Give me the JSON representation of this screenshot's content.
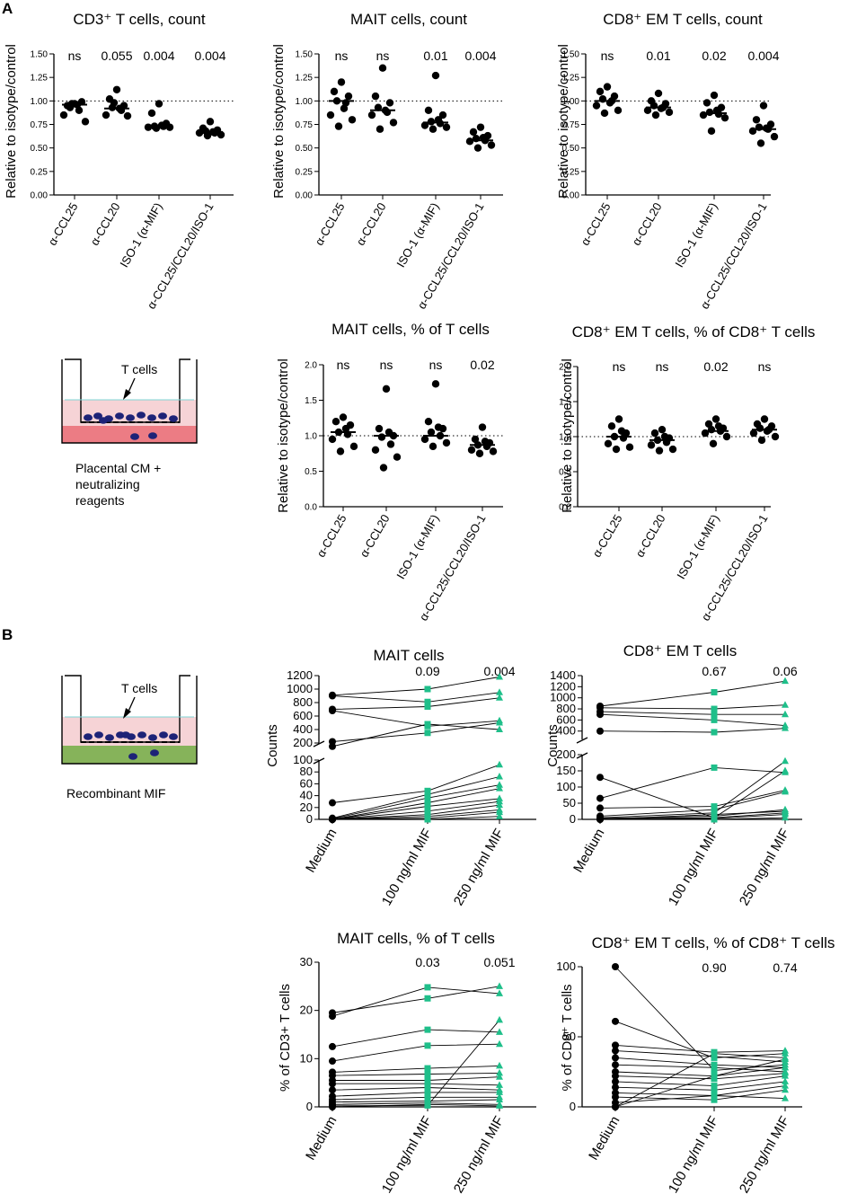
{
  "panel_labels": {
    "a": "A",
    "b": "B"
  },
  "diagram_a": {
    "label": "T cells",
    "caption": [
      "Placental CM  +",
      "neutralizing",
      "reagents"
    ]
  },
  "diagram_b": {
    "label": "T cells",
    "caption": "Recombinant MIF"
  },
  "colors": {
    "black": "#000000",
    "green": "#1fbf8a",
    "pink": "#f4c9cc",
    "red": "#e64a55",
    "olive": "#77a94a",
    "blue": "#1d2377",
    "cyan": "#7fd6d6"
  },
  "chart_data": [
    {
      "id": "a1",
      "type": "scatter",
      "title": "CD3⁺ T cells, count",
      "ylabel": "Relative to isotype/control",
      "categories": [
        "α-CCL25",
        "α-CCL20",
        "ISO-1 (α-MIF)",
        "α-CCL25/CCL20/ISO-1"
      ],
      "pvalues": [
        "ns",
        "0.055",
        "0.004",
        "0.004"
      ],
      "ylim": [
        0,
        1.5
      ],
      "yticks": [
        "0.00",
        "0.25",
        "0.50",
        "0.75",
        "1.00",
        "1.25",
        "1.50"
      ],
      "reference_line": 1.0,
      "medians": [
        0.96,
        0.92,
        0.74,
        0.67
      ],
      "series": [
        [
          0.97,
          0.95,
          0.99,
          0.93,
          0.9,
          0.85,
          0.78,
          0.97,
          0.96
        ],
        [
          1.12,
          1.02,
          0.95,
          0.93,
          0.9,
          0.85,
          0.84,
          0.98,
          0.92
        ],
        [
          0.97,
          0.87,
          0.76,
          0.73,
          0.73,
          0.72,
          0.72,
          0.71,
          0.74
        ],
        [
          0.78,
          0.71,
          0.69,
          0.68,
          0.66,
          0.66,
          0.64,
          0.63,
          0.67
        ]
      ]
    },
    {
      "id": "a2",
      "type": "scatter",
      "title": "MAIT cells, count",
      "ylabel": "Relative to isotype/control",
      "categories": [
        "α-CCL25",
        "α-CCL20",
        "ISO-1 (α-MIF)",
        "α-CCL25/CCL20/ISO-1"
      ],
      "pvalues": [
        "ns",
        "ns",
        "0.01",
        "0.004"
      ],
      "ylim": [
        0,
        1.5
      ],
      "yticks": [
        "0.00",
        "0.25",
        "0.50",
        "0.75",
        "1.00",
        "1.25",
        "1.50"
      ],
      "reference_line": 1.0,
      "medians": [
        1.0,
        0.9,
        0.77,
        0.58
      ],
      "series": [
        [
          1.2,
          1.1,
          1.05,
          1.0,
          0.98,
          0.85,
          0.8,
          0.73,
          0.92
        ],
        [
          1.35,
          1.05,
          0.98,
          0.93,
          0.88,
          0.85,
          0.77,
          0.7,
          0.9
        ],
        [
          1.27,
          0.9,
          0.85,
          0.78,
          0.76,
          0.74,
          0.72,
          0.7,
          0.8
        ],
        [
          0.72,
          0.67,
          0.63,
          0.6,
          0.58,
          0.57,
          0.53,
          0.5,
          0.61
        ]
      ]
    },
    {
      "id": "a3",
      "type": "scatter",
      "title": "CD8⁺ EM T cells, count",
      "ylabel": "Relative to isotype/control",
      "categories": [
        "α-CCL25",
        "α-CCL20",
        "ISO-1 (α-MIF)",
        "α-CCL25/CCL20/ISO-1"
      ],
      "pvalues": [
        "ns",
        "0.01",
        "0.02",
        "0.004"
      ],
      "ylim": [
        0,
        1.5
      ],
      "yticks": [
        "0.00",
        "0.25",
        "0.50",
        "0.75",
        "1.00",
        "1.25",
        "1.50"
      ],
      "reference_line": 1.0,
      "medians": [
        1.0,
        0.93,
        0.87,
        0.7
      ],
      "series": [
        [
          1.15,
          1.1,
          1.05,
          1.02,
          1.0,
          0.95,
          0.9,
          0.87,
          0.98
        ],
        [
          1.08,
          1.0,
          0.97,
          0.95,
          0.93,
          0.9,
          0.88,
          0.85,
          0.92
        ],
        [
          1.06,
          0.98,
          0.93,
          0.88,
          0.86,
          0.85,
          0.82,
          0.68,
          0.9
        ],
        [
          0.95,
          0.8,
          0.75,
          0.72,
          0.7,
          0.68,
          0.62,
          0.55,
          0.71
        ]
      ]
    },
    {
      "id": "a4",
      "type": "scatter",
      "title": "MAIT cells, % of T cells",
      "ylabel": "Relative to isotype/control",
      "categories": [
        "α-CCL25",
        "α-CCL20",
        "ISO-1 (α-MIF)",
        "α-CCL25/CCL20/ISO-1"
      ],
      "pvalues": [
        "ns",
        "ns",
        "ns",
        "0.02"
      ],
      "ylim": [
        0,
        2.0
      ],
      "yticks": [
        "0.0",
        "0.5",
        "1.0",
        "1.5",
        "2.0"
      ],
      "reference_line": 1.0,
      "medians": [
        1.05,
        1.0,
        1.0,
        0.87
      ],
      "series": [
        [
          1.26,
          1.2,
          1.15,
          1.05,
          1.02,
          0.95,
          0.85,
          0.78,
          1.1
        ],
        [
          1.66,
          1.1,
          1.0,
          0.98,
          0.88,
          0.8,
          0.7,
          0.55,
          1.05
        ],
        [
          1.73,
          1.2,
          1.1,
          1.05,
          1.0,
          0.95,
          0.9,
          0.85,
          1.12
        ],
        [
          1.12,
          0.95,
          0.9,
          0.87,
          0.85,
          0.8,
          0.78,
          0.75,
          0.92
        ]
      ]
    },
    {
      "id": "a5",
      "type": "scatter",
      "title": "CD8⁺ EM T cells, % of CD8⁺ T cells",
      "ylabel": "Relative to isotype/control",
      "categories": [
        "α-CCL25",
        "α-CCL20",
        "ISO-1 (α-MIF)",
        "α-CCL25/CCL20/ISO-1"
      ],
      "pvalues": [
        "ns",
        "ns",
        "0.02",
        "ns"
      ],
      "ylim": [
        0,
        2.0
      ],
      "yticks": [
        "0.0",
        "0.5",
        "1.0",
        "1.5",
        "2.0"
      ],
      "reference_line": 1.0,
      "medians": [
        1.0,
        0.95,
        1.08,
        1.1
      ],
      "series": [
        [
          1.25,
          1.15,
          1.05,
          1.0,
          0.98,
          0.9,
          0.85,
          0.82,
          1.08
        ],
        [
          1.1,
          1.05,
          0.98,
          0.95,
          0.92,
          0.88,
          0.82,
          0.8,
          1.0
        ],
        [
          1.25,
          1.18,
          1.12,
          1.1,
          1.08,
          1.05,
          1.0,
          0.9,
          1.15
        ],
        [
          1.25,
          1.18,
          1.15,
          1.12,
          1.1,
          1.05,
          1.0,
          0.95,
          1.08
        ]
      ]
    },
    {
      "id": "b1",
      "type": "line",
      "title": "MAIT cells",
      "ylabel": "Counts",
      "categories": [
        "Medium",
        "100 ng/ml MIF",
        "250 ng/ml MIF"
      ],
      "pvalues": [
        "",
        "0.09",
        "0.004"
      ],
      "ylim": [
        0,
        1200
      ],
      "axis_break": [
        100,
        200
      ],
      "yticks_lower": [
        "0",
        "20",
        "40",
        "60",
        "80",
        "100"
      ],
      "yticks_upper": [
        "200",
        "400",
        "600",
        "800",
        "1000",
        "1200"
      ],
      "lines": [
        [
          910,
          1000,
          1180
        ],
        [
          900,
          810,
          950
        ],
        [
          700,
          740,
          870
        ],
        [
          680,
          450,
          530
        ],
        [
          220,
          350,
          500
        ],
        [
          150,
          480,
          400
        ],
        [
          28,
          48,
          92
        ],
        [
          2,
          42,
          72
        ],
        [
          1,
          36,
          58
        ],
        [
          0,
          28,
          52
        ],
        [
          0,
          22,
          35
        ],
        [
          0,
          14,
          30
        ],
        [
          0,
          8,
          24
        ],
        [
          0,
          5,
          16
        ],
        [
          0,
          2,
          12
        ],
        [
          0,
          0,
          5
        ]
      ]
    },
    {
      "id": "b2",
      "type": "line",
      "title": "CD8⁺ EM T cells",
      "ylabel": "Counts",
      "categories": [
        "Medium",
        "100 ng/ml MIF",
        "250 ng/ml MIF"
      ],
      "pvalues": [
        "",
        "0.67",
        "0.06"
      ],
      "ylim": [
        0,
        1400
      ],
      "axis_break": [
        200,
        250
      ],
      "yticks_lower": [
        "0",
        "50",
        "100",
        "150",
        "200"
      ],
      "yticks_upper": [
        "400",
        "600",
        "800",
        "1000",
        "1200",
        "1400"
      ],
      "lines": [
        [
          850,
          1100,
          1300
        ],
        [
          820,
          800,
          870
        ],
        [
          750,
          700,
          700
        ],
        [
          700,
          600,
          500
        ],
        [
          400,
          380,
          450
        ],
        [
          130,
          5,
          150
        ],
        [
          65,
          160,
          145
        ],
        [
          35,
          40,
          90
        ],
        [
          10,
          30,
          85
        ],
        [
          5,
          20,
          180
        ],
        [
          3,
          10,
          30
        ],
        [
          2,
          5,
          20
        ],
        [
          1,
          3,
          15
        ],
        [
          0,
          15,
          25
        ],
        [
          0,
          0,
          5
        ]
      ]
    },
    {
      "id": "b3",
      "type": "line",
      "title": "MAIT cells, % of T cells",
      "ylabel": "% of CD3+ T cells",
      "categories": [
        "Medium",
        "100 ng/ml MIF",
        "250 ng/ml MIF"
      ],
      "pvalues": [
        "",
        "0.03",
        "0.051"
      ],
      "ylim": [
        0,
        30
      ],
      "yticks": [
        "0",
        "10",
        "20",
        "30"
      ],
      "lines": [
        [
          19.5,
          22.5,
          25.0
        ],
        [
          18.8,
          24.8,
          23.5
        ],
        [
          12.5,
          16.0,
          15.5
        ],
        [
          9.5,
          12.7,
          13.0
        ],
        [
          7.2,
          8.0,
          8.5
        ],
        [
          6.5,
          6.8,
          7.0
        ],
        [
          5.5,
          5.5,
          6.2
        ],
        [
          4.8,
          4.8,
          4.5
        ],
        [
          3.5,
          4.0,
          3.5
        ],
        [
          2.2,
          3.0,
          3.0
        ],
        [
          1.5,
          2.0,
          2.0
        ],
        [
          1.0,
          1.2,
          1.5
        ],
        [
          0.5,
          0.8,
          0.5
        ],
        [
          0.2,
          0.3,
          18.0
        ],
        [
          0.0,
          0.5,
          0.2
        ]
      ]
    },
    {
      "id": "b4",
      "type": "line",
      "title": "CD8⁺ EM T cells, % of CD8⁺ T cells",
      "ylabel": "% of CD8⁺ T cells",
      "categories": [
        "Medium",
        "100 ng/ml MIF",
        "250 ng/ml MIF"
      ],
      "pvalues": [
        "",
        "0.90",
        "0.74"
      ],
      "ylim": [
        0,
        100
      ],
      "yticks": [
        "0",
        "50",
        "100"
      ],
      "lines": [
        [
          100,
          26,
          30
        ],
        [
          61,
          35,
          38
        ],
        [
          44,
          39,
          40
        ],
        [
          40,
          36,
          32
        ],
        [
          35,
          30,
          28
        ],
        [
          30,
          28,
          25
        ],
        [
          25,
          22,
          34
        ],
        [
          22,
          20,
          24
        ],
        [
          18,
          15,
          22
        ],
        [
          14,
          12,
          18
        ],
        [
          10,
          8,
          15
        ],
        [
          7,
          5,
          12
        ],
        [
          3,
          8,
          6
        ],
        [
          0,
          38,
          35
        ],
        [
          0,
          22,
          28
        ]
      ]
    }
  ]
}
